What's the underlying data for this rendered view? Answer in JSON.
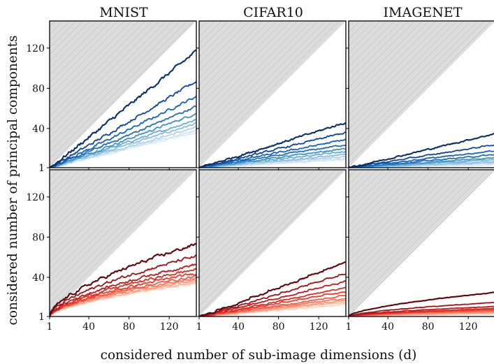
{
  "chart_data": {
    "type": "line",
    "figure": {
      "xlabel": "considered number of sub-image dimensions (d)",
      "ylabel": "considered number of principal components",
      "columns": [
        "MNIST",
        "CIFAR10",
        "IMAGENET"
      ]
    },
    "xlim": [
      1,
      147
    ],
    "ylim": [
      1,
      147
    ],
    "xticks": [
      "1",
      "40",
      "80",
      "120"
    ],
    "yticks": [
      "1",
      "40",
      "80",
      "120"
    ],
    "region": "shaded triangle where principal components > dimensions (y > x)",
    "row_colors": {
      "top": [
        "#08306b",
        "#0d47a1",
        "#1565c0",
        "#2171b5",
        "#4292c6",
        "#6baed6",
        "#90bce0",
        "#b3d3ea",
        "#cde1f1",
        "#dfeaf5"
      ],
      "bottom": [
        "#67000d",
        "#a50f15",
        "#c2191d",
        "#d7301f",
        "#ef3b2c",
        "#f35d45",
        "#fb7a5e",
        "#fc9a80",
        "#fcbba1",
        "#fdd5c4"
      ]
    },
    "panels": [
      {
        "row": "top",
        "dataset": "MNIST",
        "x": [
          1,
          20,
          40,
          60,
          80,
          100,
          120,
          147
        ],
        "final_values": [
          117,
          87,
          72,
          62,
          55,
          49,
          45,
          41,
          38,
          36
        ],
        "shape": "linear",
        "noise": 0.9
      },
      {
        "row": "top",
        "dataset": "CIFAR10",
        "x": [
          1,
          20,
          40,
          60,
          80,
          100,
          120,
          147
        ],
        "final_values": [
          46,
          36,
          29,
          24,
          20,
          17,
          14,
          12,
          10,
          9
        ],
        "shape": "linear",
        "noise": 0.9
      },
      {
        "row": "top",
        "dataset": "IMAGENET",
        "x": [
          1,
          20,
          40,
          60,
          80,
          100,
          120,
          147
        ],
        "final_values": [
          35,
          24,
          18,
          14,
          11,
          9,
          7,
          6,
          5,
          4
        ],
        "shape": "linear",
        "noise": 0.7
      },
      {
        "row": "bottom",
        "dataset": "MNIST",
        "x": [
          1,
          20,
          40,
          60,
          80,
          100,
          120,
          147
        ],
        "final_values": [
          73,
          61,
          53,
          48,
          44,
          41,
          39,
          37,
          35,
          34
        ],
        "shape": "concave",
        "noise": 1.1
      },
      {
        "row": "bottom",
        "dataset": "CIFAR10",
        "x": [
          1,
          20,
          40,
          60,
          80,
          100,
          120,
          147
        ],
        "final_values": [
          55,
          44,
          36,
          30,
          26,
          22,
          19,
          17,
          15,
          13
        ],
        "shape": "stepped",
        "noise": 0.6
      },
      {
        "row": "bottom",
        "dataset": "IMAGENET",
        "x": [
          1,
          20,
          40,
          60,
          80,
          100,
          120,
          147
        ],
        "final_values": [
          25,
          15,
          11,
          9,
          8,
          7,
          6,
          5,
          4,
          4
        ],
        "shape": "concave",
        "noise": 0.3
      }
    ]
  }
}
